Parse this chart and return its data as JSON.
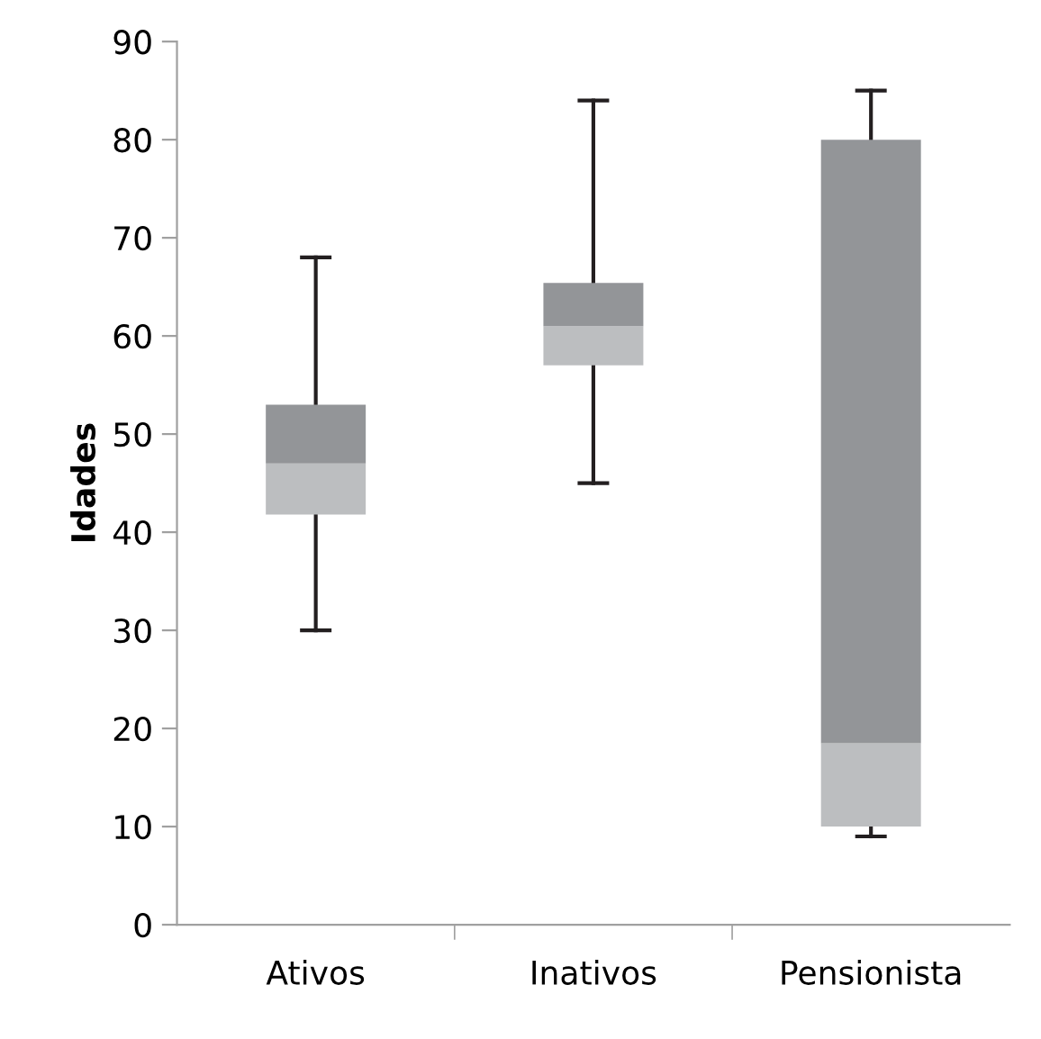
{
  "chart_data": {
    "type": "box",
    "ylabel": "Idades",
    "categories": [
      "Ativos",
      "Inativos",
      "Pensionista"
    ],
    "boxes": [
      {
        "low": 30,
        "q1": 41.8,
        "median": 47,
        "q3": 53,
        "high": 68
      },
      {
        "low": 45,
        "q1": 57,
        "median": 61,
        "q3": 65.4,
        "high": 84
      },
      {
        "low": 9,
        "q1": 10,
        "median": 18.5,
        "q3": 80,
        "high": 85
      }
    ],
    "colors": [
      [
        "#bcbec0",
        "#939598"
      ],
      [
        "#bcbec0",
        "#939598"
      ],
      [
        "#bcbec0",
        "#939598"
      ]
    ],
    "ylim": [
      0,
      90
    ],
    "yticks": [
      0,
      10,
      20,
      30,
      40,
      50,
      60,
      70,
      80,
      90
    ],
    "grid": false,
    "legend": false
  }
}
